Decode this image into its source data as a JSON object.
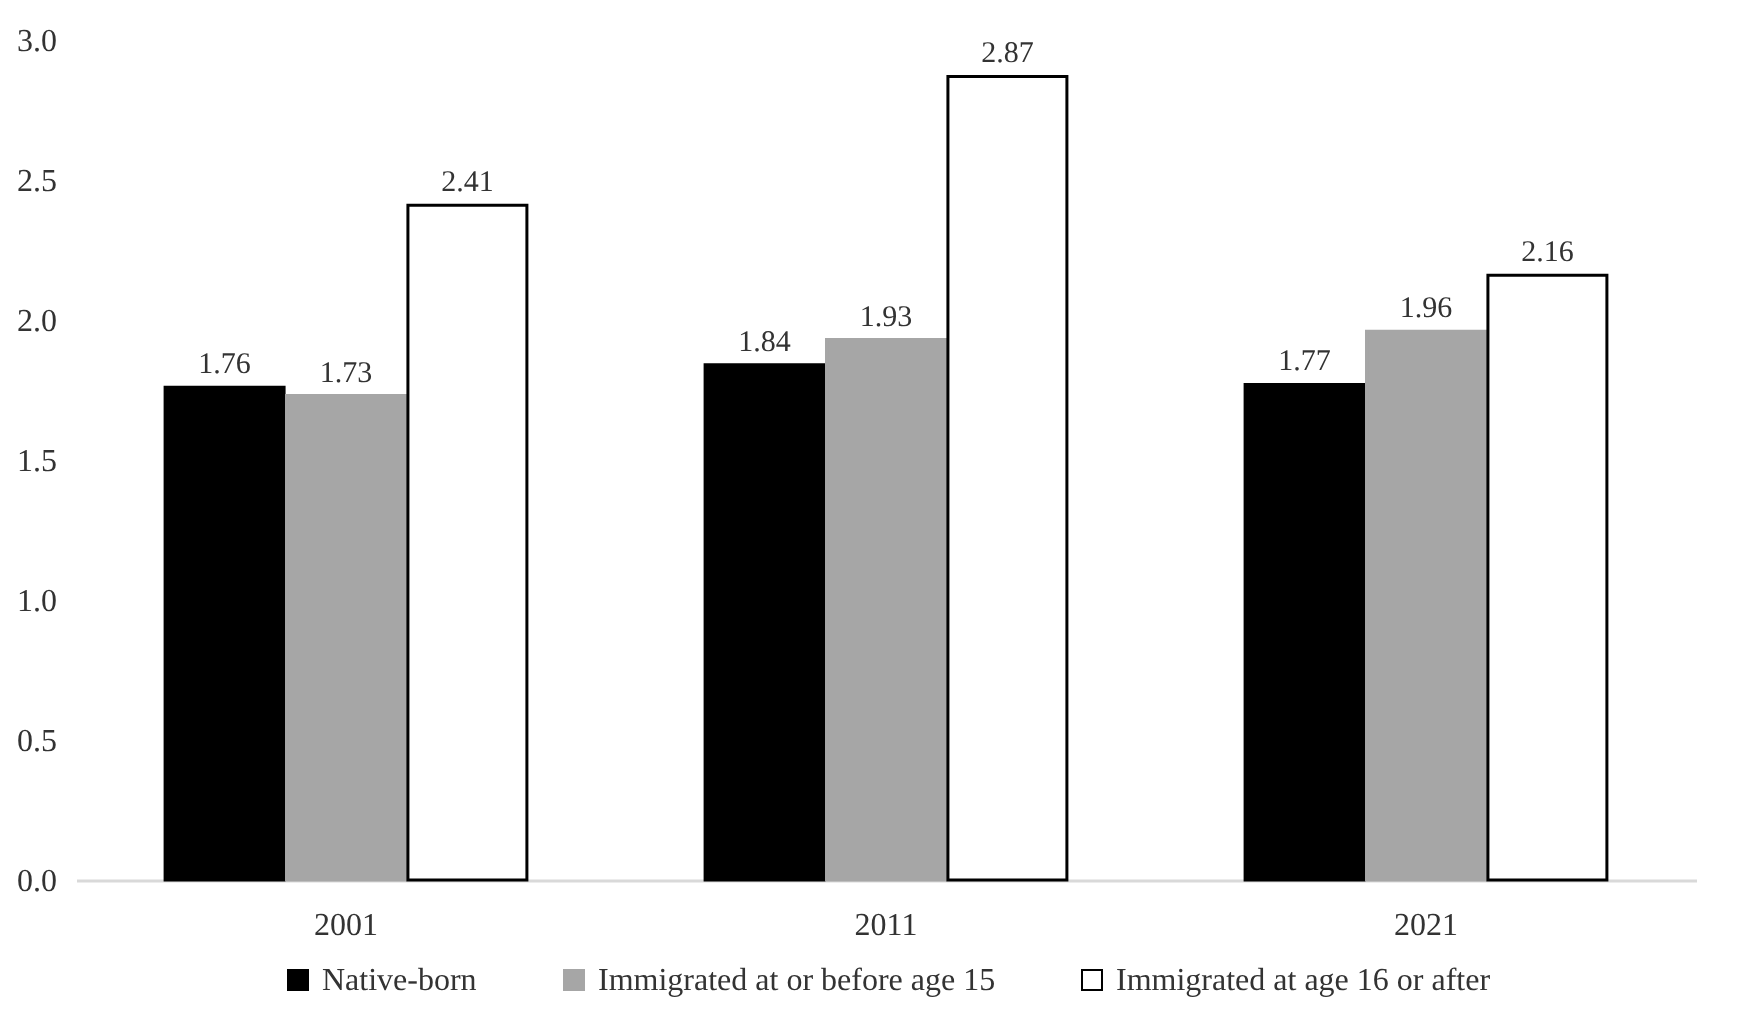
{
  "chart_data": {
    "type": "bar",
    "categories": [
      "2001",
      "2011",
      "2021"
    ],
    "series": [
      {
        "name": "Native-born",
        "color": "#000000",
        "values": [
          1.76,
          1.84,
          1.77
        ]
      },
      {
        "name": "Immigrated at or before age 15",
        "color": "#a6a6a6",
        "values": [
          1.73,
          1.93,
          1.96
        ]
      },
      {
        "name": "Immigrated at age 16 or after",
        "color": "#ffffff",
        "values": [
          2.41,
          2.87,
          2.16
        ]
      }
    ],
    "ylim": [
      0,
      3
    ],
    "yticks": [
      {
        "value": 0,
        "label": "0.0"
      },
      0.5,
      {
        "value": 1,
        "label": "1.0"
      },
      1.5,
      {
        "value": 2,
        "label": "2.0"
      },
      2.5,
      {
        "value": 3,
        "label": "3.0"
      }
    ],
    "grid": false,
    "legend": "bottom",
    "data_labels": true
  }
}
